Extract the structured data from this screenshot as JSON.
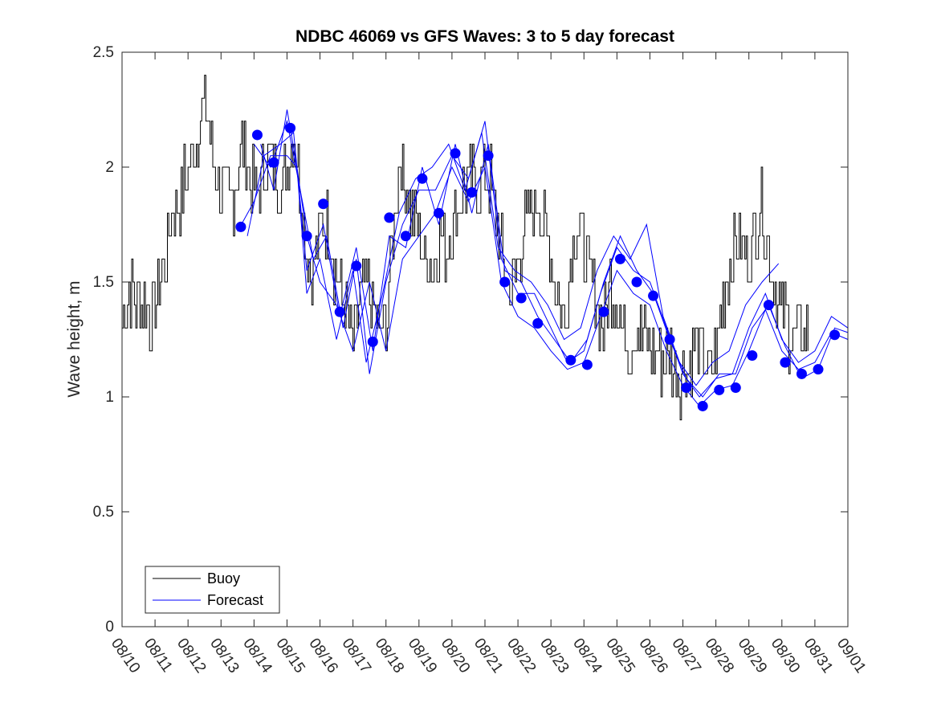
{
  "chart_data": {
    "type": "line",
    "title": "NDBC 46069 vs GFS Waves: 3 to 5 day forecast",
    "xlabel": "",
    "ylabel": "Wave height, m",
    "ylim": [
      0,
      2.5
    ],
    "xlim_days": [
      0,
      22
    ],
    "y_ticks": [
      0,
      0.5,
      1,
      1.5,
      2,
      2.5
    ],
    "y_tick_labels": [
      "0",
      "0.5",
      "1",
      "1.5",
      "2",
      "2.5"
    ],
    "x_tick_labels": [
      "08/10",
      "08/11",
      "08/12",
      "08/13",
      "08/14",
      "08/15",
      "08/16",
      "08/17",
      "08/18",
      "08/19",
      "08/20",
      "08/21",
      "08/22",
      "08/23",
      "08/24",
      "08/25",
      "08/26",
      "08/27",
      "08/28",
      "08/29",
      "08/30",
      "08/31",
      "09/01"
    ],
    "legend": [
      "Buoy",
      "Forecast"
    ],
    "legend_position": "bottom-left",
    "colors": {
      "buoy": "#000000",
      "forecast": "#0000ff",
      "axis": "#262626"
    },
    "buoy_anchor_points": [
      [
        0.0,
        1.35
      ],
      [
        0.2,
        1.45
      ],
      [
        0.5,
        1.4
      ],
      [
        0.7,
        1.45
      ],
      [
        0.9,
        1.3
      ],
      [
        1.0,
        1.4
      ],
      [
        1.3,
        1.6
      ],
      [
        1.5,
        1.8
      ],
      [
        1.8,
        1.9
      ],
      [
        2.0,
        2.0
      ],
      [
        2.2,
        2.1
      ],
      [
        2.4,
        2.25
      ],
      [
        2.5,
        2.3
      ],
      [
        2.6,
        2.2
      ],
      [
        2.8,
        2.0
      ],
      [
        3.0,
        1.9
      ],
      [
        3.2,
        1.85
      ],
      [
        3.4,
        1.9
      ],
      [
        3.6,
        2.1
      ],
      [
        3.8,
        2.0
      ],
      [
        4.0,
        1.9
      ],
      [
        4.2,
        1.95
      ],
      [
        4.4,
        2.05
      ],
      [
        4.6,
        2.0
      ],
      [
        4.8,
        1.9
      ],
      [
        5.0,
        2.0
      ],
      [
        5.2,
        2.15
      ],
      [
        5.4,
        1.9
      ],
      [
        5.6,
        1.6
      ],
      [
        5.8,
        1.55
      ],
      [
        6.0,
        1.7
      ],
      [
        6.2,
        1.8
      ],
      [
        6.4,
        1.6
      ],
      [
        6.6,
        1.45
      ],
      [
        6.8,
        1.35
      ],
      [
        7.0,
        1.25
      ],
      [
        7.2,
        1.4
      ],
      [
        7.4,
        1.5
      ],
      [
        7.6,
        1.35
      ],
      [
        7.8,
        1.25
      ],
      [
        8.0,
        1.3
      ],
      [
        8.2,
        1.7
      ],
      [
        8.4,
        2.05
      ],
      [
        8.6,
        1.9
      ],
      [
        8.8,
        1.8
      ],
      [
        9.0,
        1.7
      ],
      [
        9.2,
        1.6
      ],
      [
        9.4,
        1.55
      ],
      [
        9.6,
        1.7
      ],
      [
        9.8,
        1.6
      ],
      [
        10.0,
        1.75
      ],
      [
        10.2,
        1.85
      ],
      [
        10.4,
        1.9
      ],
      [
        10.6,
        1.95
      ],
      [
        10.8,
        1.9
      ],
      [
        11.0,
        2.0
      ],
      [
        11.2,
        1.9
      ],
      [
        11.4,
        1.7
      ],
      [
        11.6,
        1.55
      ],
      [
        11.8,
        1.45
      ],
      [
        12.0,
        1.6
      ],
      [
        12.2,
        1.75
      ],
      [
        12.4,
        1.8
      ],
      [
        12.6,
        1.85
      ],
      [
        12.8,
        1.75
      ],
      [
        13.0,
        1.6
      ],
      [
        13.2,
        1.45
      ],
      [
        13.4,
        1.3
      ],
      [
        13.6,
        1.6
      ],
      [
        13.8,
        1.75
      ],
      [
        14.0,
        1.65
      ],
      [
        14.2,
        1.5
      ],
      [
        14.4,
        1.4
      ],
      [
        14.6,
        1.3
      ],
      [
        14.8,
        1.5
      ],
      [
        15.0,
        1.4
      ],
      [
        15.2,
        1.3
      ],
      [
        15.4,
        1.25
      ],
      [
        15.6,
        1.3
      ],
      [
        15.8,
        1.25
      ],
      [
        16.0,
        1.2
      ],
      [
        16.2,
        1.2
      ],
      [
        16.4,
        1.15
      ],
      [
        16.6,
        1.2
      ],
      [
        16.8,
        1.1
      ],
      [
        17.0,
        1.1
      ],
      [
        17.2,
        1.15
      ],
      [
        17.4,
        1.2
      ],
      [
        17.6,
        1.15
      ],
      [
        17.8,
        1.1
      ],
      [
        18.0,
        1.2
      ],
      [
        18.2,
        1.4
      ],
      [
        18.4,
        1.6
      ],
      [
        18.6,
        1.7
      ],
      [
        18.8,
        1.65
      ],
      [
        19.0,
        1.6
      ],
      [
        19.2,
        1.75
      ],
      [
        19.4,
        1.85
      ],
      [
        19.6,
        1.6
      ],
      [
        19.8,
        1.45
      ],
      [
        20.0,
        1.35
      ],
      [
        20.2,
        1.3
      ],
      [
        20.4,
        1.25
      ],
      [
        20.6,
        1.3
      ],
      [
        20.8,
        1.25
      ]
    ],
    "forecast_markers": [
      [
        3.6,
        1.74
      ],
      [
        4.1,
        2.14
      ],
      [
        4.6,
        2.02
      ],
      [
        5.1,
        2.17
      ],
      [
        5.6,
        1.7
      ],
      [
        6.1,
        1.84
      ],
      [
        6.6,
        1.37
      ],
      [
        7.1,
        1.57
      ],
      [
        7.6,
        1.24
      ],
      [
        8.1,
        1.78
      ],
      [
        8.6,
        1.7
      ],
      [
        9.1,
        1.95
      ],
      [
        9.6,
        1.8
      ],
      [
        10.1,
        2.06
      ],
      [
        10.6,
        1.89
      ],
      [
        11.1,
        2.05
      ],
      [
        11.6,
        1.5
      ],
      [
        12.1,
        1.43
      ],
      [
        12.6,
        1.32
      ],
      [
        13.6,
        1.16
      ],
      [
        14.1,
        1.14
      ],
      [
        14.6,
        1.37
      ],
      [
        15.1,
        1.6
      ],
      [
        15.6,
        1.5
      ],
      [
        16.1,
        1.44
      ],
      [
        16.6,
        1.25
      ],
      [
        17.1,
        1.04
      ],
      [
        17.6,
        0.96
      ],
      [
        18.1,
        1.03
      ],
      [
        18.6,
        1.04
      ],
      [
        19.1,
        1.18
      ],
      [
        19.6,
        1.4
      ],
      [
        20.1,
        1.15
      ],
      [
        20.6,
        1.1
      ],
      [
        21.1,
        1.12
      ],
      [
        21.6,
        1.27
      ]
    ],
    "forecast_lines": [
      [
        [
          3.5,
          1.72
        ],
        [
          4.0,
          1.85
        ],
        [
          4.5,
          2.05
        ],
        [
          5.0,
          2.05
        ],
        [
          5.3,
          2.0
        ],
        [
          5.6,
          1.7
        ],
        [
          6.0,
          1.5
        ],
        [
          6.5,
          1.4
        ],
        [
          7.0,
          1.2
        ],
        [
          7.5,
          1.5
        ],
        [
          8.0,
          1.2
        ],
        [
          8.5,
          1.6
        ],
        [
          9.0,
          1.7
        ],
        [
          9.5,
          1.8
        ],
        [
          10.0,
          2.0
        ],
        [
          10.5,
          1.85
        ],
        [
          11.0,
          2.0
        ],
        [
          11.5,
          1.5
        ],
        [
          12.0,
          1.35
        ],
        [
          12.5,
          1.3
        ],
        [
          13.0,
          1.2
        ],
        [
          13.5,
          1.12
        ],
        [
          14.0,
          1.15
        ],
        [
          14.5,
          1.35
        ],
        [
          15.0,
          1.55
        ],
        [
          15.5,
          1.45
        ],
        [
          16.0,
          1.4
        ],
        [
          16.5,
          1.2
        ],
        [
          17.0,
          1.05
        ],
        [
          17.5,
          0.96
        ],
        [
          18.0,
          1.03
        ],
        [
          18.5,
          1.05
        ],
        [
          19.0,
          1.2
        ],
        [
          19.5,
          1.38
        ],
        [
          20.0,
          1.2
        ],
        [
          20.5,
          1.12
        ],
        [
          21.0,
          1.15
        ],
        [
          21.5,
          1.28
        ],
        [
          22.0,
          1.25
        ]
      ],
      [
        [
          4.0,
          2.1
        ],
        [
          4.5,
          2.0
        ],
        [
          5.0,
          2.2
        ],
        [
          5.4,
          1.9
        ],
        [
          5.8,
          1.6
        ],
        [
          6.2,
          1.7
        ],
        [
          6.7,
          1.3
        ],
        [
          7.1,
          1.6
        ],
        [
          7.5,
          1.1
        ],
        [
          8.0,
          1.5
        ],
        [
          8.5,
          1.75
        ],
        [
          9.0,
          1.9
        ],
        [
          9.5,
          1.9
        ],
        [
          10.0,
          2.05
        ],
        [
          10.5,
          1.95
        ],
        [
          11.0,
          2.2
        ],
        [
          11.5,
          1.6
        ],
        [
          12.0,
          1.45
        ],
        [
          12.5,
          1.45
        ],
        [
          13.0,
          1.3
        ],
        [
          13.5,
          1.15
        ],
        [
          14.0,
          1.2
        ],
        [
          14.5,
          1.45
        ],
        [
          15.0,
          1.65
        ],
        [
          15.5,
          1.55
        ],
        [
          16.0,
          1.5
        ],
        [
          16.5,
          1.3
        ],
        [
          17.0,
          1.1
        ],
        [
          17.5,
          1.0
        ],
        [
          18.0,
          1.08
        ],
        [
          18.5,
          1.1
        ],
        [
          19.0,
          1.3
        ],
        [
          19.5,
          1.45
        ],
        [
          20.0,
          1.25
        ],
        [
          20.5,
          1.15
        ],
        [
          21.0,
          1.2
        ],
        [
          21.5,
          1.35
        ],
        [
          22.0,
          1.3
        ]
      ],
      [
        [
          4.2,
          2.1
        ],
        [
          4.6,
          1.9
        ],
        [
          5.0,
          2.25
        ],
        [
          5.3,
          2.0
        ],
        [
          5.6,
          1.45
        ],
        [
          6.0,
          1.6
        ],
        [
          6.5,
          1.25
        ],
        [
          7.0,
          1.55
        ],
        [
          7.4,
          1.15
        ],
        [
          7.9,
          1.45
        ],
        [
          8.4,
          1.8
        ],
        [
          8.9,
          1.95
        ],
        [
          9.4,
          2.0
        ],
        [
          9.9,
          2.1
        ],
        [
          10.4,
          1.9
        ],
        [
          10.9,
          2.15
        ],
        [
          11.4,
          1.65
        ],
        [
          11.9,
          1.55
        ],
        [
          12.4,
          1.5
        ],
        [
          12.9,
          1.4
        ],
        [
          13.4,
          1.25
        ],
        [
          13.9,
          1.3
        ],
        [
          14.4,
          1.55
        ],
        [
          14.9,
          1.7
        ],
        [
          15.4,
          1.6
        ],
        [
          15.9,
          1.75
        ],
        [
          16.4,
          1.35
        ],
        [
          16.9,
          1.15
        ],
        [
          17.4,
          1.05
        ],
        [
          17.9,
          1.15
        ],
        [
          18.4,
          1.2
        ],
        [
          18.9,
          1.4
        ],
        [
          19.4,
          1.5
        ],
        [
          19.9,
          1.58
        ]
      ],
      [
        [
          3.8,
          1.7
        ],
        [
          4.3,
          2.05
        ],
        [
          4.8,
          2.1
        ],
        [
          5.2,
          2.15
        ],
        [
          5.6,
          1.55
        ],
        [
          6.1,
          1.75
        ],
        [
          6.6,
          1.35
        ],
        [
          7.1,
          1.65
        ],
        [
          7.6,
          1.2
        ],
        [
          8.1,
          1.7
        ],
        [
          8.6,
          1.65
        ],
        [
          9.1,
          2.0
        ],
        [
          9.6,
          1.75
        ],
        [
          10.1,
          2.1
        ],
        [
          10.6,
          1.8
        ],
        [
          11.1,
          2.1
        ],
        [
          11.6,
          1.55
        ],
        [
          12.1,
          1.5
        ],
        [
          12.6,
          1.35
        ],
        [
          13.1,
          1.25
        ],
        [
          13.6,
          1.15
        ],
        [
          14.1,
          1.25
        ],
        [
          14.6,
          1.5
        ],
        [
          15.1,
          1.7
        ],
        [
          15.6,
          1.55
        ],
        [
          16.1,
          1.45
        ],
        [
          16.6,
          1.25
        ],
        [
          17.1,
          1.08
        ],
        [
          17.6,
          1.0
        ],
        [
          18.1,
          1.1
        ],
        [
          18.6,
          1.1
        ],
        [
          19.1,
          1.3
        ],
        [
          19.6,
          1.4
        ],
        [
          20.1,
          1.22
        ],
        [
          20.6,
          1.08
        ],
        [
          21.1,
          1.12
        ],
        [
          21.6,
          1.3
        ],
        [
          22.0,
          1.28
        ]
      ]
    ]
  }
}
